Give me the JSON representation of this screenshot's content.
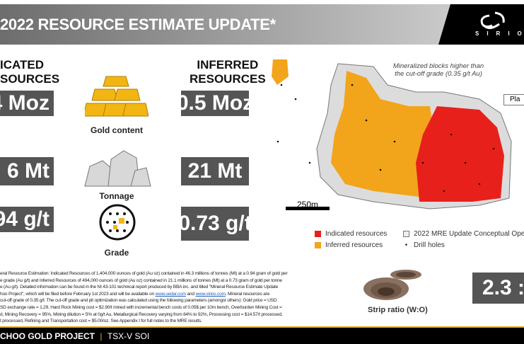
{
  "header": {
    "title": "2022 RESOURCE ESTIMATE UPDATE*",
    "logo_text": "SIRIOS"
  },
  "left": {
    "heading": "ICATED\nSOURCES",
    "heading_l1": "ICATED",
    "heading_l2": "SOURCES",
    "ounces": "4 Moz",
    "tonnage": "6 Mt",
    "grade": "94 g/t"
  },
  "right": {
    "heading_l1": "INFERRED",
    "heading_l2": "RESOURCES",
    "ounces": "0.5 Moz",
    "tonnage": "21 Mt",
    "grade": "0.73 g/t"
  },
  "center": {
    "gold_label": "Gold content",
    "tonnage_label": "Tonnage",
    "grade_label": "Grade"
  },
  "map": {
    "annotation_l1": "Mineralized blocks higher than",
    "annotation_l2": "the cut-off grade (0.35 g/t Au)",
    "plan_label": "Pla",
    "scale": "250m",
    "legend": [
      {
        "label": "Indicated resources",
        "color": "#e8201c"
      },
      {
        "label": "Inferred resources",
        "color": "#f2a51a"
      },
      {
        "label": "2022 MRE Update Conceptual Ope",
        "color": "#dcdcdc"
      },
      {
        "label": "Drill holes",
        "color": "#111111"
      }
    ]
  },
  "footnote": {
    "l1": "eral Resource Estimation: Indicated Resources of 1,404,000 ounces of gold (Au oz) contained in 46.3 millions of tonnes (Mt) at a 0.94 gram of gold per",
    "l2": "e grade (Au g/t) and Inferred Resources of 494,000 ounces of gold (Au oz) contained in 21.1 millions of tonnes (Mt) at a 0.73 gram of gold per tonne",
    "l3": "e (Au g/t). Detailed information can be found in the NI 43-101 technical report produced by BBA inc. and titled \"Mineral Resource Estimate Update",
    "l4a": "hoo Project\", which will be filed before February 1st 2023 and will be available on ",
    "link1": "www.sedar.com",
    "l4b": " and ",
    "link2": "www.sirios.com",
    "l4c": ". Mineral resources are",
    "l5": "cut-off grade of 0.35 g/t. The cut-off grade and pit optimization was calculated using the following parameters (amongst others): Gold price = USD",
    "l6": "SD exchange rate = 1.29, Hard Rock Mining cost = $2.90/t mined with incremental bench costs of 0.05$ per 10m bench, Overburden Mining Cost =",
    "l7": "d, Mining Recovery = 95%, Mining dilution = 5% at 0g/t Au, Metallurgical Recovery varying from 84% to 92%, Processing cost = $14.57/t processed,",
    "l8": "t processed, Refining and Transportation cost = $5.00/oz. See Appendix I for full notes to the MRE results."
  },
  "strip": {
    "label": "Strip ratio (W:O)",
    "value": "2.3 :"
  },
  "footer": {
    "project": "CHOO GOLD PROJECT",
    "separator": "|",
    "ticker": "TSX-V SOI"
  }
}
